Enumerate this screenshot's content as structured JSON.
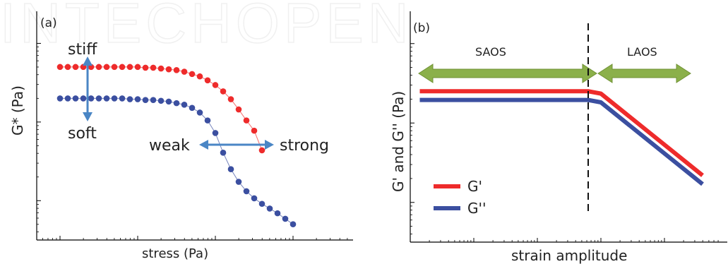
{
  "watermark": "INTECHOPEN",
  "chart_data": [
    {
      "type": "scatter",
      "panel_label": "(a)",
      "xlabel": "stress (Pa)",
      "ylabel": "G* (Pa)",
      "x_scale": "log",
      "y_scale": "log",
      "tick_labels_shown": false,
      "series": [
        {
          "color": "#ee2b2b",
          "marker": "circle",
          "values": [
            [
              -2.0,
              2.7
            ],
            [
              -1.9,
              2.7
            ],
            [
              -1.8,
              2.7
            ],
            [
              -1.7,
              2.7
            ],
            [
              -1.6,
              2.7
            ],
            [
              -1.5,
              2.7
            ],
            [
              -1.4,
              2.7
            ],
            [
              -1.3,
              2.7
            ],
            [
              -1.2,
              2.7
            ],
            [
              -1.1,
              2.7
            ],
            [
              -1.0,
              2.7
            ],
            [
              -0.9,
              2.69
            ],
            [
              -0.8,
              2.69
            ],
            [
              -0.7,
              2.68
            ],
            [
              -0.6,
              2.67
            ],
            [
              -0.5,
              2.66
            ],
            [
              -0.4,
              2.64
            ],
            [
              -0.3,
              2.61
            ],
            [
              -0.2,
              2.58
            ],
            [
              -0.1,
              2.53
            ],
            [
              0.0,
              2.47
            ],
            [
              0.1,
              2.39
            ],
            [
              0.2,
              2.29
            ],
            [
              0.3,
              2.16
            ],
            [
              0.4,
              2.02
            ],
            [
              0.5,
              1.89
            ],
            [
              0.6,
              1.64
            ]
          ]
        },
        {
          "color": "#3b4fa0",
          "marker": "circle",
          "values": [
            [
              -2.0,
              2.3
            ],
            [
              -1.9,
              2.3
            ],
            [
              -1.8,
              2.3
            ],
            [
              -1.7,
              2.3
            ],
            [
              -1.6,
              2.3
            ],
            [
              -1.5,
              2.3
            ],
            [
              -1.4,
              2.3
            ],
            [
              -1.3,
              2.3
            ],
            [
              -1.2,
              2.3
            ],
            [
              -1.1,
              2.29
            ],
            [
              -1.0,
              2.29
            ],
            [
              -0.9,
              2.28
            ],
            [
              -0.8,
              2.28
            ],
            [
              -0.7,
              2.27
            ],
            [
              -0.6,
              2.26
            ],
            [
              -0.5,
              2.24
            ],
            [
              -0.4,
              2.22
            ],
            [
              -0.3,
              2.18
            ],
            [
              -0.2,
              2.12
            ],
            [
              -0.1,
              2.02
            ],
            [
              0.0,
              1.86
            ],
            [
              0.1,
              1.61
            ],
            [
              0.2,
              1.4
            ],
            [
              0.3,
              1.24
            ],
            [
              0.4,
              1.12
            ],
            [
              0.5,
              1.03
            ],
            [
              0.6,
              0.96
            ],
            [
              0.7,
              0.9
            ],
            [
              0.8,
              0.84
            ],
            [
              0.9,
              0.77
            ],
            [
              1.0,
              0.7
            ]
          ]
        }
      ],
      "xlim": [
        -2.3,
        1.7
      ],
      "ylim": [
        0.5,
        3.3
      ],
      "annotations": {
        "stiff": "stiff",
        "soft": "soft",
        "weak": "weak",
        "strong": "strong"
      }
    },
    {
      "type": "line",
      "panel_label": "(b)",
      "xlabel": "strain amplitude",
      "ylabel": "G' and G'' (Pa)",
      "x_scale": "log",
      "y_scale": "log",
      "tick_labels_shown": false,
      "xlim": [
        -2.0,
        2.9
      ],
      "ylim": [
        0.5,
        3.3
      ],
      "boundary_x": 0.8,
      "regions": [
        {
          "label": "SAOS",
          "from": -1.85,
          "to": 0.8
        },
        {
          "label": "LAOS",
          "from": 0.8,
          "to": 2.55
        }
      ],
      "series": [
        {
          "name": "G'",
          "color": "#ee2b2b",
          "values": [
            [
              -1.85,
              2.4
            ],
            [
              0.8,
              2.4
            ],
            [
              1.0,
              2.37
            ],
            [
              2.6,
              1.34
            ]
          ]
        },
        {
          "name": "G''",
          "color": "#3b4fa0",
          "values": [
            [
              -1.85,
              2.29
            ],
            [
              0.8,
              2.29
            ],
            [
              1.0,
              2.26
            ],
            [
              2.6,
              1.23
            ]
          ]
        }
      ],
      "legend_placement": "lower-left"
    }
  ]
}
